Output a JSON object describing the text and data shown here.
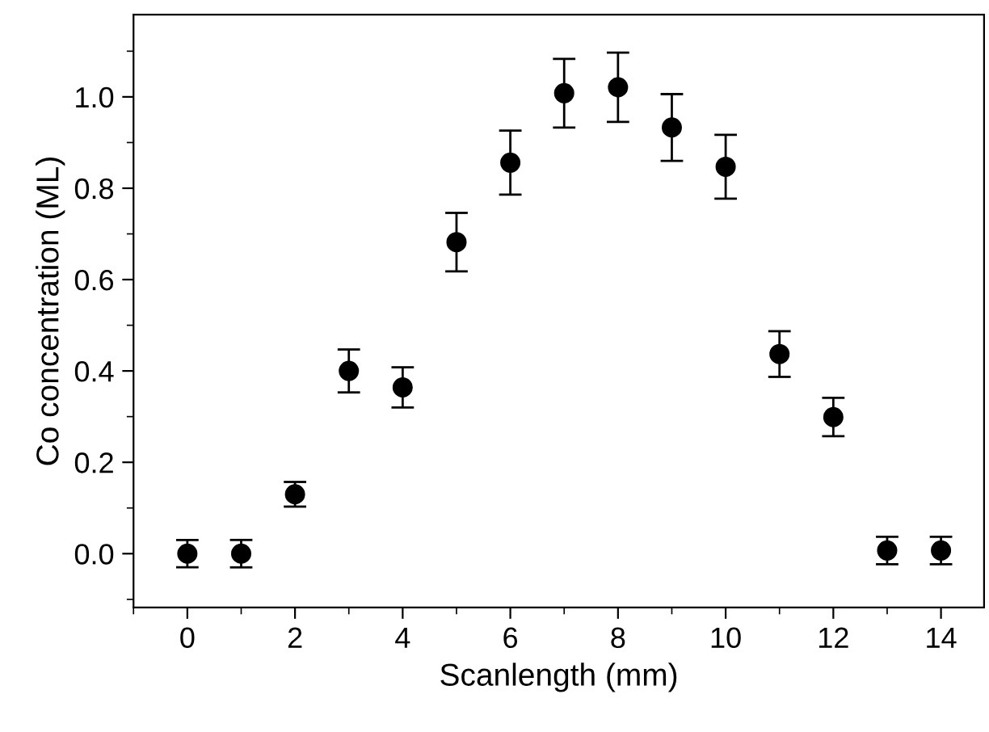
{
  "chart_data": {
    "type": "scatter",
    "xlabel": "Scanlength (mm)",
    "ylabel": "Co concentration (ML)",
    "x": [
      0,
      1,
      2,
      3,
      4,
      5,
      6,
      7,
      8,
      9,
      10,
      11,
      12,
      13,
      14
    ],
    "series": [
      {
        "color": "#000000",
        "values": [
          0.0,
          0.0,
          0.13,
          0.4,
          0.364,
          0.682,
          0.856,
          1.008,
          1.021,
          0.933,
          0.847,
          0.437,
          0.299,
          0.007,
          0.007
        ],
        "errors": [
          0.03,
          0.03,
          0.027,
          0.047,
          0.044,
          0.064,
          0.07,
          0.075,
          0.076,
          0.073,
          0.07,
          0.05,
          0.042,
          0.03,
          0.03
        ]
      }
    ],
    "xlim": [
      -1,
      14.8
    ],
    "ylim": [
      -0.118,
      1.18
    ],
    "xticks": [
      0,
      2,
      4,
      6,
      8,
      10,
      12,
      14
    ],
    "yticks": [
      {
        "value": 0,
        "label": "0.0"
      },
      0.2,
      0.4,
      0.6,
      0.8,
      {
        "value": 1,
        "label": "1.0"
      }
    ],
    "marker": "circle",
    "grid": false,
    "legend": false
  }
}
